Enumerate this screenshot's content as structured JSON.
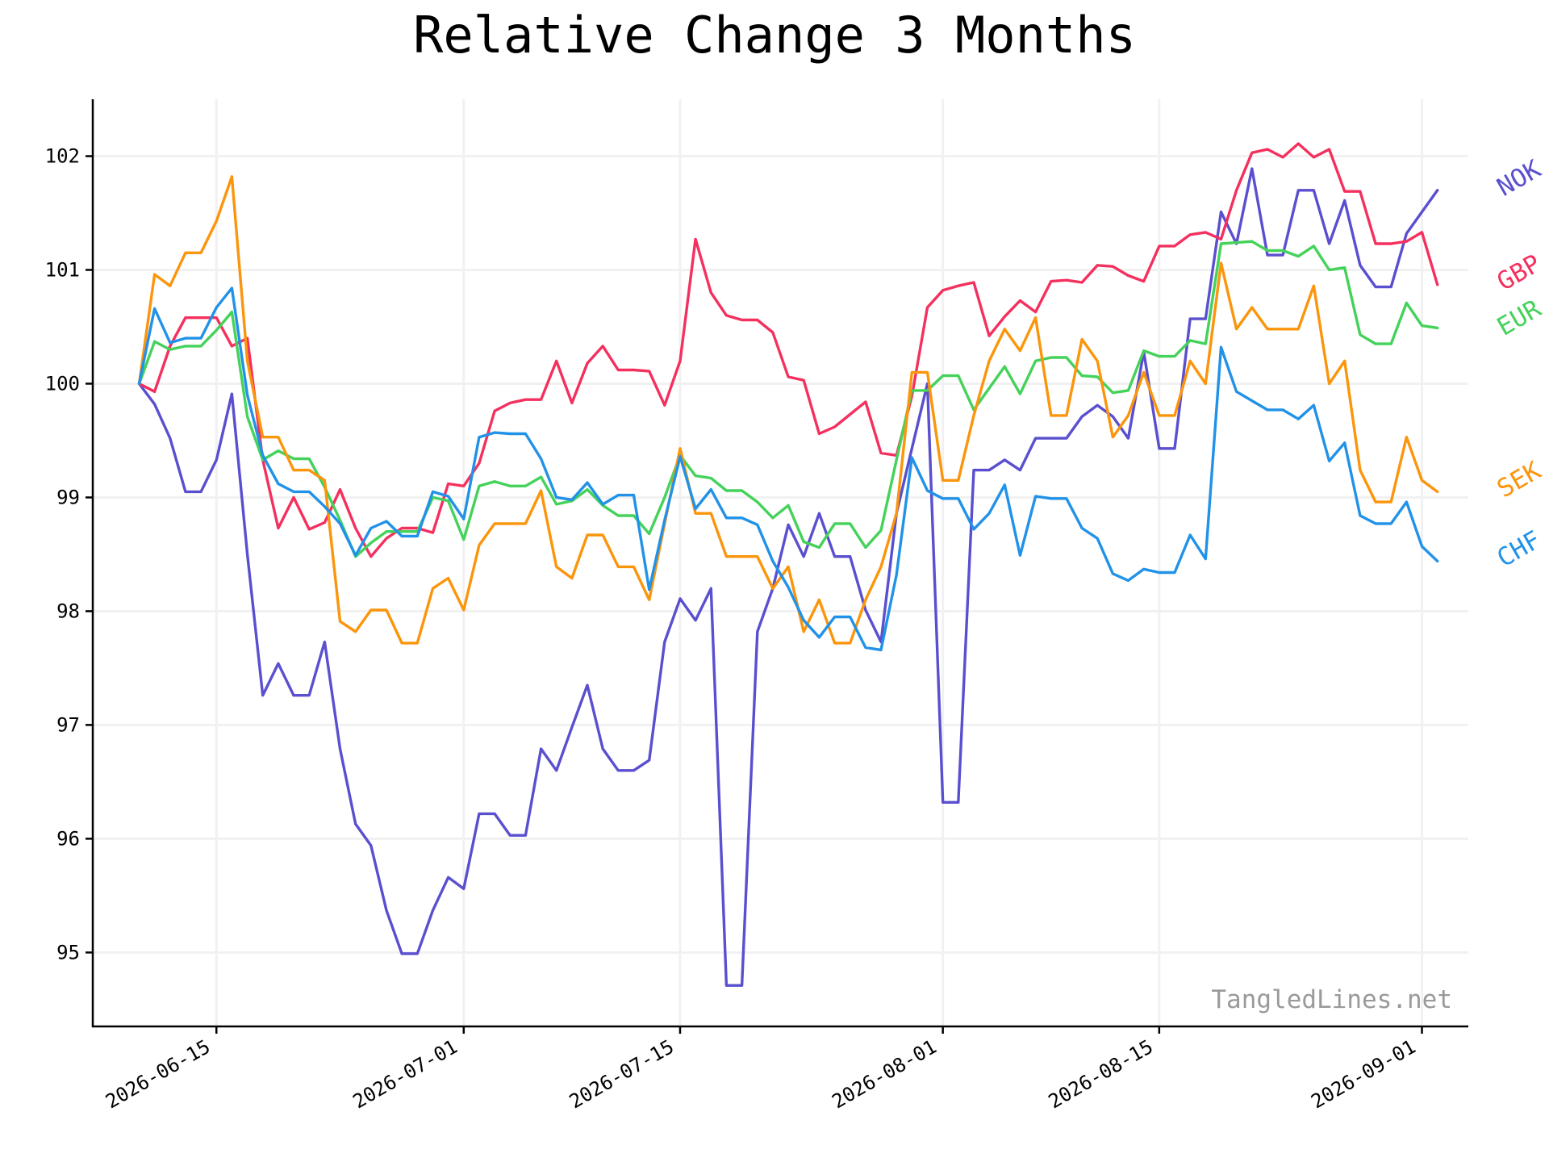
{
  "chart_data": {
    "type": "line",
    "title": "Relative Change 3 Months",
    "xlabel": "",
    "ylabel": "",
    "watermark": "TangledLines.net",
    "x_start": "2026-06-10",
    "x_step_days": 1,
    "xlim": [
      "2026-06-07",
      "2026-09-04"
    ],
    "ylim": [
      94.35,
      102.5
    ],
    "x_ticks": [
      "2026-06-15",
      "2026-07-01",
      "2026-07-15",
      "2026-08-01",
      "2026-08-15",
      "2026-09-01"
    ],
    "y_ticks": [
      95,
      96,
      97,
      98,
      99,
      100,
      101,
      102
    ],
    "grid": true,
    "legend": "direct labels at right end of each line",
    "series": [
      {
        "name": "NOK",
        "color": "#5a4fcf",
        "values": [
          100,
          99.82,
          99.52,
          99.05,
          99.05,
          99.33,
          99.91,
          98.5,
          97.26,
          97.54,
          97.26,
          97.26,
          97.73,
          96.79,
          96.13,
          95.94,
          95.37,
          94.99,
          94.99,
          95.37,
          95.66,
          95.56,
          96.22,
          96.22,
          96.03,
          96.03,
          96.79,
          96.6,
          96.98,
          97.35,
          96.79,
          96.6,
          96.6,
          96.69,
          97.73,
          98.11,
          97.92,
          98.2,
          94.71,
          94.71,
          97.82,
          98.2,
          98.76,
          98.48,
          98.86,
          98.48,
          98.48,
          98.01,
          97.73,
          98.86,
          99.43,
          100,
          96.32,
          96.32,
          99.24,
          99.24,
          99.33,
          99.24,
          99.52,
          99.52,
          99.52,
          99.71,
          99.81,
          99.71,
          99.52,
          100.28,
          99.43,
          99.43,
          100.57,
          100.57,
          101.51,
          101.23,
          101.89,
          101.13,
          101.13,
          101.7,
          101.7,
          101.23,
          101.61,
          101.04,
          100.85,
          100.85,
          101.32,
          101.51,
          101.7
        ]
      },
      {
        "name": "GBP",
        "color": "#f4305e",
        "values": [
          100,
          99.93,
          100.33,
          100.58,
          100.58,
          100.58,
          100.33,
          100.4,
          99.33,
          98.73,
          99,
          98.72,
          98.78,
          99.07,
          98.73,
          98.48,
          98.64,
          98.73,
          98.73,
          98.69,
          99.12,
          99.1,
          99.3,
          99.76,
          99.83,
          99.86,
          99.86,
          100.2,
          99.83,
          100.18,
          100.33,
          100.12,
          100.12,
          100.11,
          99.81,
          100.2,
          101.27,
          100.8,
          100.6,
          100.56,
          100.56,
          100.45,
          100.06,
          100.03,
          99.56,
          99.62,
          99.73,
          99.84,
          99.39,
          99.37,
          99.89,
          100.67,
          100.82,
          100.86,
          100.89,
          100.42,
          100.59,
          100.73,
          100.63,
          100.9,
          100.91,
          100.89,
          101.04,
          101.03,
          100.95,
          100.9,
          101.21,
          101.21,
          101.31,
          101.33,
          101.27,
          101.7,
          102.03,
          102.06,
          101.99,
          102.11,
          101.99,
          102.06,
          101.69,
          101.69,
          101.23,
          101.23,
          101.25,
          101.33,
          100.87
        ]
      },
      {
        "name": "EUR",
        "color": "#44d25a",
        "values": [
          100,
          100.37,
          100.3,
          100.33,
          100.33,
          100.47,
          100.63,
          99.71,
          99.33,
          99.41,
          99.34,
          99.34,
          99.09,
          98.8,
          98.48,
          98.6,
          98.7,
          98.7,
          98.7,
          99,
          98.97,
          98.63,
          99.1,
          99.14,
          99.1,
          99.1,
          99.18,
          98.94,
          98.97,
          99.07,
          98.93,
          98.84,
          98.84,
          98.68,
          99,
          99.37,
          99.19,
          99.17,
          99.06,
          99.06,
          98.96,
          98.82,
          98.93,
          98.61,
          98.56,
          98.77,
          98.77,
          98.56,
          98.71,
          99.33,
          99.94,
          99.94,
          100.07,
          100.07,
          99.77,
          99.96,
          100.15,
          99.91,
          100.2,
          100.23,
          100.23,
          100.07,
          100.06,
          99.92,
          99.94,
          100.29,
          100.24,
          100.24,
          100.38,
          100.35,
          101.23,
          101.24,
          101.25,
          101.17,
          101.17,
          101.12,
          101.21,
          101,
          101.02,
          100.43,
          100.35,
          100.35,
          100.71,
          100.51,
          100.49
        ]
      },
      {
        "name": "SEK",
        "color": "#fb950c",
        "values": [
          100,
          100.96,
          100.86,
          101.15,
          101.15,
          101.43,
          101.82,
          100.2,
          99.53,
          99.53,
          99.24,
          99.24,
          99.15,
          97.91,
          97.82,
          98.01,
          98.01,
          97.72,
          97.72,
          98.2,
          98.29,
          98.01,
          98.58,
          98.77,
          98.77,
          98.77,
          99.06,
          98.39,
          98.29,
          98.67,
          98.67,
          98.39,
          98.39,
          98.1,
          98.77,
          99.43,
          98.86,
          98.86,
          98.48,
          98.48,
          98.48,
          98.2,
          98.39,
          97.82,
          98.1,
          97.72,
          97.72,
          98.1,
          98.39,
          98.86,
          100.1,
          100.1,
          99.15,
          99.15,
          99.72,
          100.2,
          100.48,
          100.29,
          100.58,
          99.72,
          99.72,
          100.39,
          100.2,
          99.53,
          99.72,
          100.1,
          99.72,
          99.72,
          100.2,
          100,
          101.06,
          100.48,
          100.67,
          100.48,
          100.48,
          100.48,
          100.86,
          100,
          100.2,
          99.24,
          98.96,
          98.96,
          99.53,
          99.15,
          99.05
        ]
      },
      {
        "name": "CHF",
        "color": "#2192e7",
        "values": [
          100,
          100.66,
          100.36,
          100.4,
          100.4,
          100.67,
          100.84,
          99.9,
          99.37,
          99.12,
          99.05,
          99.05,
          98.92,
          98.77,
          98.49,
          98.73,
          98.79,
          98.66,
          98.66,
          99.05,
          99.01,
          98.81,
          99.53,
          99.57,
          99.56,
          99.56,
          99.34,
          99,
          98.98,
          99.13,
          98.94,
          99.02,
          99.02,
          98.19,
          98.8,
          99.36,
          98.9,
          99.07,
          98.82,
          98.82,
          98.76,
          98.44,
          98.21,
          97.92,
          97.77,
          97.95,
          97.95,
          97.68,
          97.66,
          98.32,
          99.35,
          99.06,
          98.99,
          98.99,
          98.72,
          98.86,
          99.11,
          98.49,
          99.01,
          98.99,
          98.99,
          98.73,
          98.64,
          98.33,
          98.27,
          98.37,
          98.34,
          98.34,
          98.67,
          98.46,
          100.32,
          99.93,
          99.85,
          99.77,
          99.77,
          99.69,
          99.81,
          99.32,
          99.48,
          98.84,
          98.77,
          98.77,
          98.96,
          98.57,
          98.44
        ]
      }
    ]
  }
}
